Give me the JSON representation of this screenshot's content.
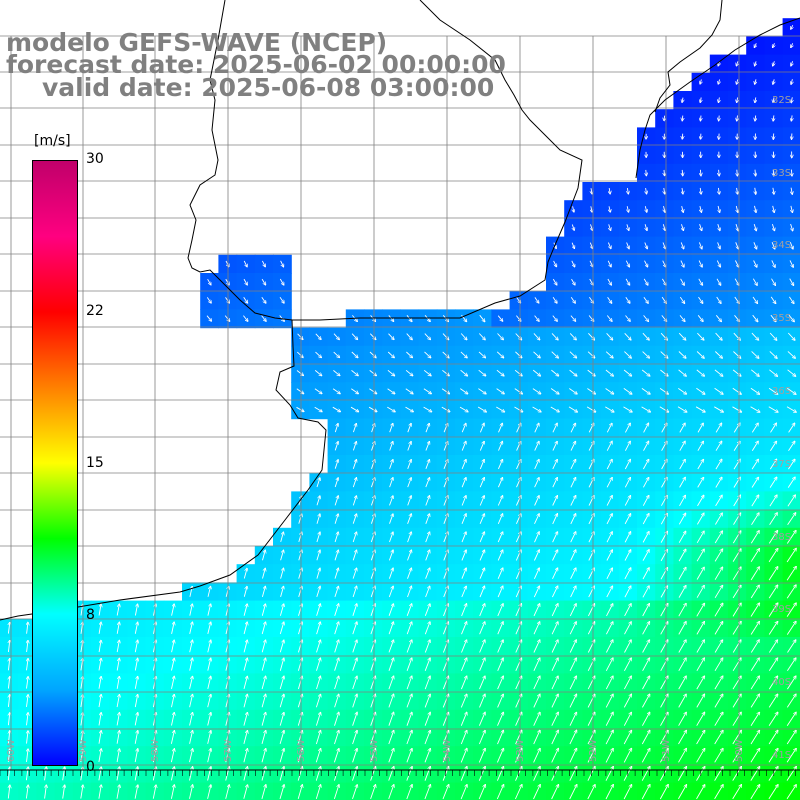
{
  "title": {
    "line1": "modelo GEFS-WAVE (NCEP)",
    "line2": "forecast date: 2025-06-02 00:00:00",
    "line3": "valid date: 2025-06-08 03:00:00"
  },
  "colorbar": {
    "unit": "[m/s]",
    "ticks": [
      "30",
      "22",
      "15",
      "8",
      "0"
    ],
    "range": [
      0,
      30
    ],
    "colors": [
      "#0000ff",
      "#00a6ff",
      "#00ffff",
      "#00ff00",
      "#ffff00",
      "#ff8000",
      "#ff0000",
      "#ff0080",
      "#c0006a"
    ]
  },
  "map": {
    "lat_labels": [
      "32S",
      "33S",
      "34S",
      "35S",
      "36S",
      "37S",
      "38S",
      "39S",
      "40S",
      "41S"
    ],
    "lon_labels": [
      "60W",
      "59W",
      "58W",
      "57W",
      "56W",
      "55W",
      "54W",
      "53W",
      "52W",
      "51W",
      "50W"
    ],
    "land_color": "#ffffff",
    "grid_color": "#808080",
    "coast_color": "#000000",
    "arrow_color": "#ffffff"
  }
}
